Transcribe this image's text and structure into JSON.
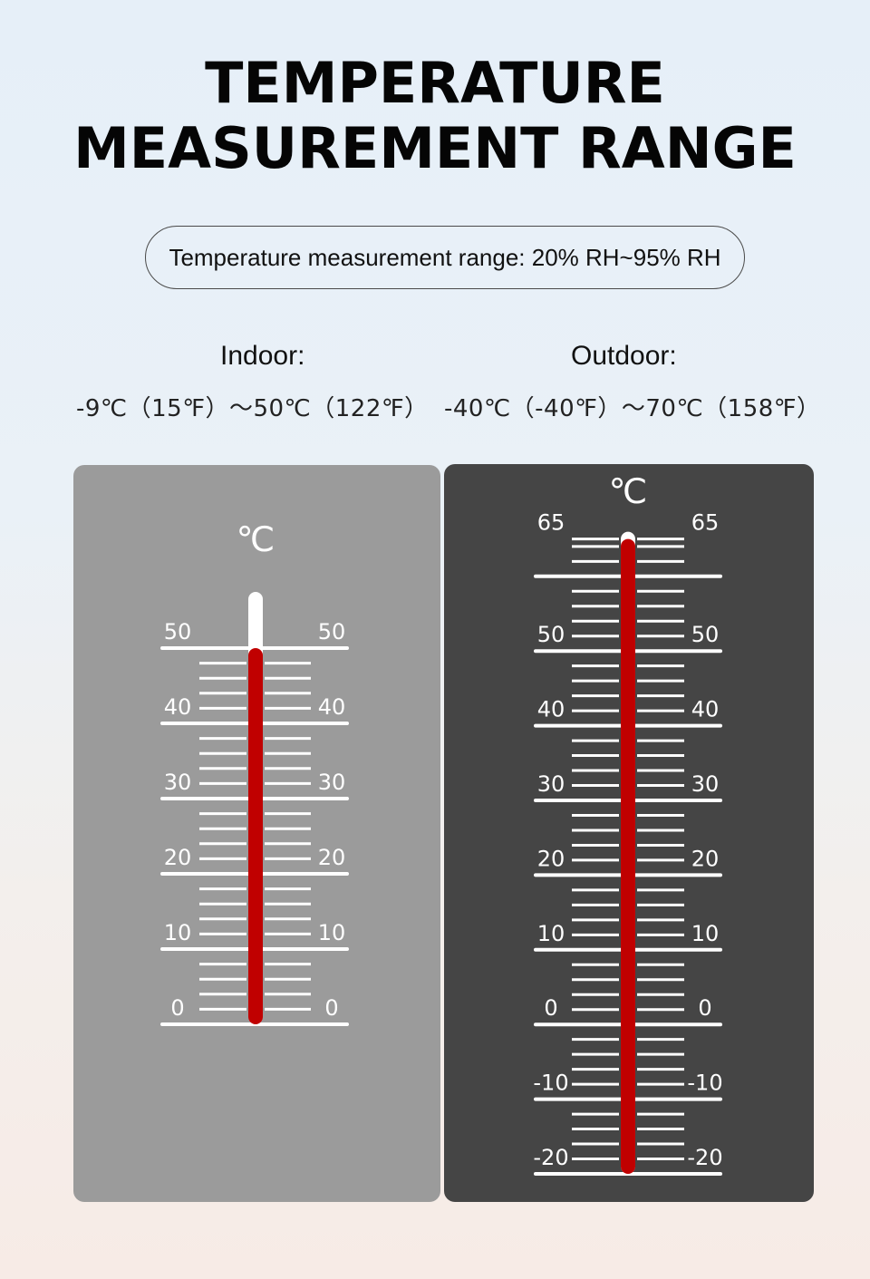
{
  "heading": {
    "line1": "TEMPERATURE",
    "line2": "MEASUREMENT RANGE"
  },
  "pill_text": "Temperature measurement range: 20% RH~95% RH",
  "indoor": {
    "label": "Indoor:",
    "range": "-9℃（15℉）～50℃（122℉）",
    "unit": "℃",
    "scale_min": 0,
    "scale_max": 50,
    "major_labels": [
      "50",
      "40",
      "30",
      "20",
      "10",
      "0"
    ],
    "level_c": 50,
    "tube_top_c": 56.5,
    "colors": {
      "panel": "#9b9b9b",
      "mercury": "#c00000",
      "tube": "#ffffff"
    }
  },
  "outdoor": {
    "label": "Outdoor:",
    "range": "-40℃（-40℉）～70℃（158℉）",
    "unit": "℃",
    "scale_min": -20,
    "scale_max": 65,
    "major_labels": [
      "65",
      "50",
      "40",
      "30",
      "20",
      "10",
      "0",
      "-10",
      "-20"
    ],
    "level_c": 65,
    "tube_top_c": 65,
    "colors": {
      "panel": "#454545",
      "mercury": "#c00000",
      "tube": "#ffffff"
    }
  }
}
